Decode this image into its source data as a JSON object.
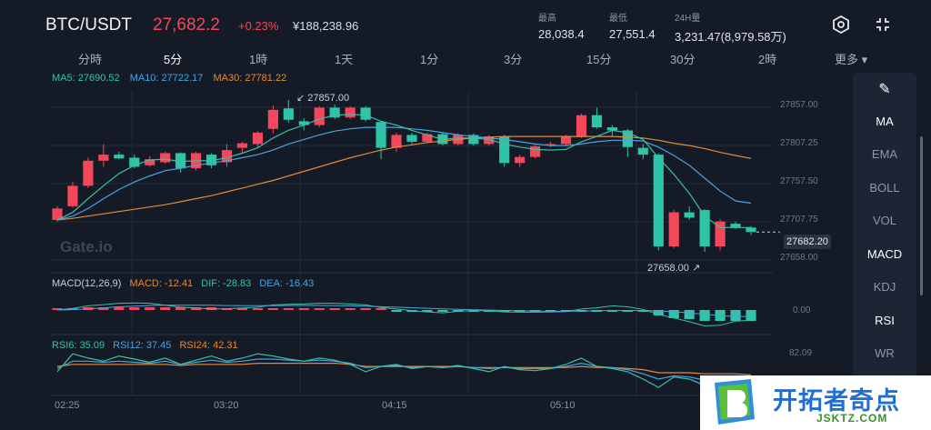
{
  "header": {
    "pair": "BTC/USDT",
    "price": "27,682.2",
    "change": "+0.23%",
    "cny_price": "¥188,238.96",
    "stats": [
      {
        "label": "最高",
        "value": "28,038.4"
      },
      {
        "label": "最低",
        "value": "27,551.4"
      },
      {
        "label": "24H量",
        "value": "3,231.47(8,979.58万)"
      }
    ],
    "icons": [
      "settings-hexagon-icon",
      "collapse-icon"
    ]
  },
  "tabs": [
    {
      "label": "分時",
      "active": false
    },
    {
      "label": "5分",
      "active": true
    },
    {
      "label": "1時",
      "active": false
    },
    {
      "label": "1天",
      "active": false
    },
    {
      "label": "1分",
      "active": false
    },
    {
      "label": "3分",
      "active": false
    },
    {
      "label": "15分",
      "active": false
    },
    {
      "label": "30分",
      "active": false
    },
    {
      "label": "2時",
      "active": false
    },
    {
      "label": "更多 ▾",
      "active": false
    }
  ],
  "ma_legend": {
    "ma5": "MA5: 27690.52",
    "ma10": "MA10: 27722.17",
    "ma30": "MA30: 27781.22"
  },
  "macd_legend": {
    "name": "MACD(12,26,9)",
    "macd": "MACD: -12.41",
    "dif": "DIF: -28.83",
    "dea": "DEA: -16.43"
  },
  "rsi_legend": {
    "rsi6": "RSI6: 35.09",
    "rsi12": "RSI12: 37.45",
    "rsi24": "RSI24: 42.31"
  },
  "price_axis": [
    "27857.00",
    "27807.25",
    "27757.50",
    "27707.75",
    "27658.00"
  ],
  "macd_axis": "0.00",
  "rsi_axis": "82.09",
  "time_axis": [
    "02:25",
    "03:20",
    "04:15",
    "05:10"
  ],
  "current_price_tag": "27682.20",
  "high_marker": "27857.00",
  "low_marker": "27658.00",
  "watermark": "Gate.io",
  "sidebar": [
    {
      "label": "✎",
      "name": "draw-tool-icon",
      "on": true
    },
    {
      "label": "MA",
      "name": "indicator-ma",
      "on": true
    },
    {
      "label": "EMA",
      "name": "indicator-ema",
      "on": false
    },
    {
      "label": "BOLL",
      "name": "indicator-boll",
      "on": false
    },
    {
      "label": "VOL",
      "name": "indicator-vol",
      "on": false
    },
    {
      "label": "MACD",
      "name": "indicator-macd",
      "on": true
    },
    {
      "label": "KDJ",
      "name": "indicator-kdj",
      "on": false
    },
    {
      "label": "RSI",
      "name": "indicator-rsi",
      "on": true
    },
    {
      "label": "WR",
      "name": "indicator-wr",
      "on": false
    }
  ],
  "brand": {
    "name": "开拓者奇点",
    "url": "JSKTZ.COM"
  },
  "colors": {
    "up": "#f5475c",
    "down": "#2ec4a8",
    "ma5": "#3cc0a3",
    "ma10": "#4aa3e0",
    "ma30": "#e08a3c",
    "bg": "#141b27"
  },
  "chart_data": {
    "type": "candlestick",
    "ylim": [
      27640,
      27870
    ],
    "candles": [
      {
        "o": 27700,
        "c": 27715,
        "h": 27718,
        "l": 27698
      },
      {
        "o": 27718,
        "c": 27745,
        "h": 27750,
        "l": 27716
      },
      {
        "o": 27745,
        "c": 27778,
        "h": 27782,
        "l": 27742
      },
      {
        "o": 27778,
        "c": 27786,
        "h": 27800,
        "l": 27770
      },
      {
        "o": 27786,
        "c": 27781,
        "h": 27790,
        "l": 27780
      },
      {
        "o": 27782,
        "c": 27770,
        "h": 27786,
        "l": 27768
      },
      {
        "o": 27772,
        "c": 27780,
        "h": 27784,
        "l": 27770
      },
      {
        "o": 27776,
        "c": 27788,
        "h": 27790,
        "l": 27774
      },
      {
        "o": 27788,
        "c": 27768,
        "h": 27789,
        "l": 27762
      },
      {
        "o": 27768,
        "c": 27788,
        "h": 27790,
        "l": 27765
      },
      {
        "o": 27786,
        "c": 27772,
        "h": 27788,
        "l": 27768
      },
      {
        "o": 27776,
        "c": 27792,
        "h": 27800,
        "l": 27770
      },
      {
        "o": 27795,
        "c": 27801,
        "h": 27803,
        "l": 27788
      },
      {
        "o": 27800,
        "c": 27815,
        "h": 27817,
        "l": 27796
      },
      {
        "o": 27820,
        "c": 27845,
        "h": 27851,
        "l": 27814
      },
      {
        "o": 27847,
        "c": 27832,
        "h": 27858,
        "l": 27828
      },
      {
        "o": 27830,
        "c": 27825,
        "h": 27834,
        "l": 27818
      },
      {
        "o": 27825,
        "c": 27848,
        "h": 27850,
        "l": 27822
      },
      {
        "o": 27848,
        "c": 27835,
        "h": 27852,
        "l": 27833
      },
      {
        "o": 27835,
        "c": 27848,
        "h": 27850,
        "l": 27833
      },
      {
        "o": 27848,
        "c": 27832,
        "h": 27850,
        "l": 27830
      },
      {
        "o": 27829,
        "c": 27795,
        "h": 27830,
        "l": 27780
      },
      {
        "o": 27795,
        "c": 27812,
        "h": 27815,
        "l": 27790
      },
      {
        "o": 27812,
        "c": 27803,
        "h": 27815,
        "l": 27800
      },
      {
        "o": 27803,
        "c": 27813,
        "h": 27815,
        "l": 27801
      },
      {
        "o": 27813,
        "c": 27800,
        "h": 27815,
        "l": 27798
      },
      {
        "o": 27800,
        "c": 27812,
        "h": 27814,
        "l": 27798
      },
      {
        "o": 27812,
        "c": 27800,
        "h": 27814,
        "l": 27798
      },
      {
        "o": 27800,
        "c": 27810,
        "h": 27812,
        "l": 27798
      },
      {
        "o": 27810,
        "c": 27775,
        "h": 27812,
        "l": 27770
      },
      {
        "o": 27775,
        "c": 27783,
        "h": 27786,
        "l": 27770
      },
      {
        "o": 27783,
        "c": 27797,
        "h": 27800,
        "l": 27781
      },
      {
        "o": 27800,
        "c": 27800,
        "h": 27803,
        "l": 27796
      },
      {
        "o": 27800,
        "c": 27810,
        "h": 27812,
        "l": 27798
      },
      {
        "o": 27810,
        "c": 27838,
        "h": 27840,
        "l": 27808
      },
      {
        "o": 27838,
        "c": 27822,
        "h": 27848,
        "l": 27820
      },
      {
        "o": 27822,
        "c": 27818,
        "h": 27825,
        "l": 27810
      },
      {
        "o": 27818,
        "c": 27796,
        "h": 27820,
        "l": 27783
      },
      {
        "o": 27795,
        "c": 27786,
        "h": 27800,
        "l": 27780
      },
      {
        "o": 27786,
        "c": 27665,
        "h": 27788,
        "l": 27660
      },
      {
        "o": 27665,
        "c": 27710,
        "h": 27713,
        "l": 27663
      },
      {
        "o": 27710,
        "c": 27703,
        "h": 27718,
        "l": 27700
      },
      {
        "o": 27713,
        "c": 27665,
        "h": 27714,
        "l": 27658
      },
      {
        "o": 27665,
        "c": 27698,
        "h": 27701,
        "l": 27660
      },
      {
        "o": 27695,
        "c": 27690,
        "h": 27698,
        "l": 27688
      },
      {
        "o": 27690,
        "c": 27684,
        "h": 27692,
        "l": 27680
      }
    ],
    "ma5": [
      27700,
      27710,
      27728,
      27745,
      27761,
      27772,
      27779,
      27780,
      27777,
      27778,
      27778,
      27782,
      27788,
      27795,
      27808,
      27818,
      27825,
      27833,
      27838,
      27839,
      27838,
      27830,
      27825,
      27818,
      27812,
      27806,
      27808,
      27808,
      27806,
      27800,
      27796,
      27793,
      27792,
      27793,
      27803,
      27810,
      27818,
      27815,
      27806,
      27782,
      27760,
      27735,
      27705,
      27690,
      27690,
      27690
    ],
    "ma10": [
      27700,
      27705,
      27715,
      27728,
      27740,
      27750,
      27758,
      27765,
      27768,
      27772,
      27775,
      27778,
      27782,
      27786,
      27792,
      27800,
      27806,
      27812,
      27817,
      27820,
      27822,
      27822,
      27822,
      27820,
      27818,
      27815,
      27812,
      27810,
      27808,
      27806,
      27803,
      27800,
      27798,
      27798,
      27800,
      27803,
      27805,
      27805,
      27804,
      27796,
      27785,
      27772,
      27755,
      27738,
      27725,
      27722
    ],
    "ma30": [
      27700,
      27702,
      27705,
      27708,
      27711,
      27714,
      27717,
      27720,
      27724,
      27728,
      27732,
      27737,
      27742,
      27747,
      27752,
      27758,
      27764,
      27770,
      27776,
      27782,
      27787,
      27792,
      27796,
      27799,
      27802,
      27804,
      27806,
      27808,
      27809,
      27810,
      27810,
      27810,
      27810,
      27810,
      27810,
      27810,
      27810,
      27809,
      27808,
      27805,
      27801,
      27798,
      27794,
      27789,
      27785,
      27781
    ],
    "macd": [
      2,
      2,
      3,
      3,
      3,
      3,
      3,
      3,
      3,
      3,
      3,
      2,
      2,
      2,
      2,
      2,
      2,
      2,
      2,
      2,
      1,
      0,
      -1,
      -1,
      -1,
      -1,
      -1,
      -1,
      -1,
      -1,
      -2,
      -2,
      -2,
      -1,
      -1,
      -1,
      -1,
      -2,
      -2,
      -6,
      -9,
      -10,
      -12,
      -12,
      -12,
      -12
    ],
    "rsi6": [
      45,
      62,
      58,
      55,
      60,
      57,
      54,
      58,
      52,
      56,
      60,
      55,
      58,
      62,
      60,
      57,
      55,
      58,
      56,
      52,
      45,
      50,
      52,
      48,
      50,
      49,
      51,
      48,
      45,
      50,
      47,
      46,
      48,
      52,
      58,
      50,
      48,
      45,
      38,
      30,
      40,
      38,
      32,
      40,
      38,
      35
    ],
    "rsi12": [
      48,
      55,
      55,
      54,
      55,
      54,
      53,
      55,
      52,
      54,
      56,
      54,
      55,
      57,
      57,
      56,
      55,
      56,
      55,
      53,
      49,
      50,
      51,
      49,
      50,
      49,
      50,
      49,
      48,
      49,
      48,
      48,
      48,
      50,
      53,
      50,
      49,
      47,
      43,
      38,
      41,
      40,
      37,
      40,
      39,
      37
    ],
    "rsi24": [
      50,
      52,
      52,
      52,
      52,
      52,
      52,
      52,
      51,
      52,
      52,
      52,
      52,
      53,
      53,
      53,
      53,
      53,
      53,
      52,
      50,
      50,
      50,
      50,
      50,
      50,
      50,
      49,
      49,
      49,
      49,
      49,
      49,
      49,
      50,
      49,
      49,
      48,
      47,
      44,
      44,
      44,
      43,
      43,
      43,
      42
    ]
  }
}
